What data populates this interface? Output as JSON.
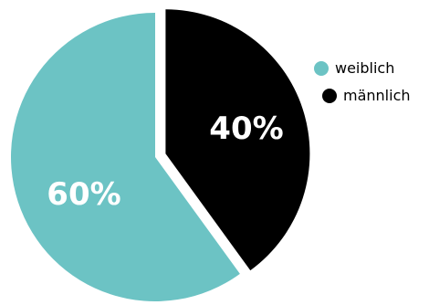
{
  "chart_data": {
    "type": "pie",
    "title": "",
    "slices": [
      {
        "label": "weiblich",
        "value": 60,
        "display": "60%",
        "color": "#6cc3c4"
      },
      {
        "label": "männlich",
        "value": 40,
        "display": "40%",
        "color": "#000000"
      }
    ],
    "legend": {
      "position": "right",
      "entries": [
        {
          "label": "weiblich",
          "color": "#6cc3c4"
        },
        {
          "label": "männlich",
          "color": "#000000"
        }
      ]
    }
  }
}
